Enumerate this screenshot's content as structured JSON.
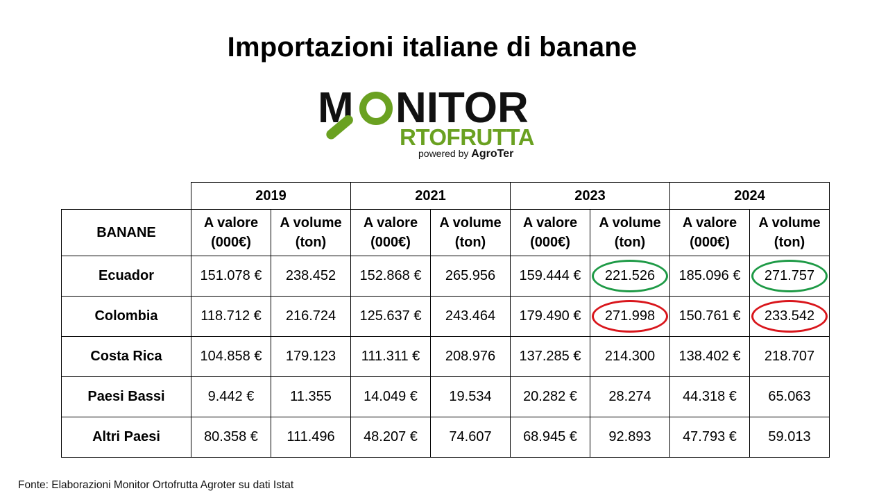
{
  "title": "Importazioni italiane di banane",
  "logo": {
    "line1_prefix": "M",
    "line1_suffix": "NITOR",
    "line2": "RTOFRUTTA",
    "powered_by": "powered by",
    "brand": "AgroTer",
    "colors": {
      "green": "#6aa121",
      "dark": "#111111"
    }
  },
  "table": {
    "corner_label": "BANANE",
    "years": [
      "2019",
      "2021",
      "2023",
      "2024"
    ],
    "sub_value": [
      "A valore",
      "(000€)"
    ],
    "sub_volume": [
      "A volume",
      "(ton)"
    ],
    "rows": [
      {
        "country": "Ecuador",
        "cells": [
          "151.078 €",
          "238.452",
          "152.868 €",
          "265.956",
          "159.444 €",
          "221.526",
          "185.096 €",
          "271.757"
        ]
      },
      {
        "country": "Colombia",
        "cells": [
          "118.712 €",
          "216.724",
          "125.637 €",
          "243.464",
          "179.490 €",
          "271.998",
          "150.761 €",
          "233.542"
        ]
      },
      {
        "country": "Costa Rica",
        "cells": [
          "104.858 €",
          "179.123",
          "111.311 €",
          "208.976",
          "137.285 €",
          "214.300",
          "138.402 €",
          "218.707"
        ]
      },
      {
        "country": "Paesi Bassi",
        "cells": [
          "9.442 €",
          "11.355",
          "14.049 €",
          "19.534",
          "20.282 €",
          "28.274",
          "44.318 €",
          "65.063"
        ]
      },
      {
        "country": "Altri Paesi",
        "cells": [
          "80.358 €",
          "111.496",
          "48.207 €",
          "74.607",
          "68.945 €",
          "92.893",
          "47.793 €",
          "59.013"
        ]
      }
    ],
    "highlight_colors": {
      "green": "#1e9a46",
      "red": "#d9161c"
    }
  },
  "source": "Fonte: Elaborazioni Monitor Ortofrutta Agroter su dati Istat"
}
